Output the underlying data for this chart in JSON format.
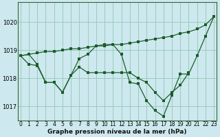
{
  "xlabel": "Graphe pression niveau de la mer (hPa)",
  "bg_color": "#cde8ee",
  "plot_bg_color": "#cde8ee",
  "grid_color": "#99ccbb",
  "line_color": "#1a5c28",
  "ylim": [
    1016.5,
    1020.7
  ],
  "xlim": [
    -0.3,
    23.3
  ],
  "yticks": [
    1017,
    1018,
    1019,
    1020
  ],
  "xticks": [
    0,
    1,
    2,
    3,
    4,
    5,
    6,
    7,
    8,
    9,
    10,
    11,
    12,
    13,
    14,
    15,
    16,
    17,
    18,
    19,
    20,
    21,
    22,
    23
  ],
  "seriesA_x": [
    0,
    1,
    2,
    3,
    4,
    5,
    6,
    7,
    8,
    9,
    10,
    11,
    12,
    13,
    14,
    15,
    16,
    17,
    18,
    19,
    20,
    21,
    22,
    23
  ],
  "seriesA_y": [
    1018.8,
    1018.85,
    1018.9,
    1018.95,
    1018.95,
    1019.0,
    1019.05,
    1019.05,
    1019.1,
    1019.15,
    1019.15,
    1019.2,
    1019.2,
    1019.25,
    1019.3,
    1019.35,
    1019.4,
    1019.45,
    1019.5,
    1019.6,
    1019.65,
    1019.75,
    1019.9,
    1020.2
  ],
  "seriesB_x": [
    0,
    1,
    2,
    3,
    4,
    5,
    6,
    7,
    8,
    9,
    10,
    11,
    12,
    13,
    14,
    15,
    16,
    17,
    18,
    19,
    20,
    21,
    22,
    23
  ],
  "seriesB_y": [
    1018.8,
    1018.85,
    1018.5,
    1017.85,
    1017.85,
    1017.5,
    1018.1,
    1018.7,
    1018.85,
    1019.15,
    1019.2,
    1019.2,
    1018.85,
    1017.85,
    1017.8,
    1017.2,
    1016.85,
    1016.65,
    1017.4,
    1018.15,
    1018.15,
    1018.8,
    1019.5,
    1020.2
  ],
  "seriesC_x": [
    0,
    1,
    2,
    3,
    4,
    5,
    6,
    7,
    8,
    9,
    10,
    11,
    12,
    13,
    14,
    15,
    16,
    17,
    18,
    19,
    20
  ],
  "seriesC_y": [
    1018.8,
    1018.5,
    1018.45,
    1017.85,
    1017.85,
    1017.5,
    1018.1,
    1018.4,
    1018.2,
    1018.2,
    1018.2,
    1018.2,
    1018.2,
    1018.2,
    1018.0,
    1017.85,
    1017.5,
    1017.2,
    1017.5,
    1017.75,
    1018.2
  ]
}
